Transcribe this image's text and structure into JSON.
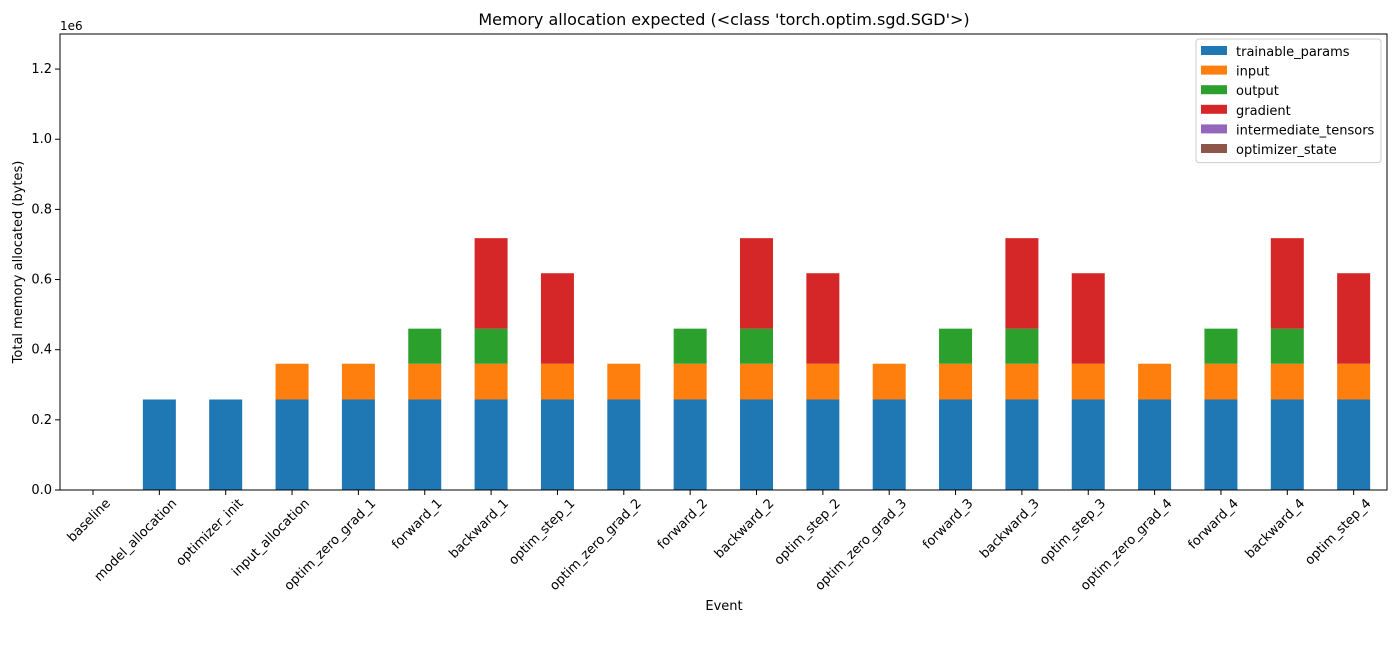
{
  "chart_data": {
    "type": "bar",
    "stacked": true,
    "title": "Memory allocation expected (<class 'torch.optim.sgd.SGD'>)",
    "xlabel": "Event",
    "ylabel": "Total memory allocated (bytes)",
    "y_offset_label": "1e6",
    "y_scale": 1000000,
    "ylim": [
      0,
      1300000
    ],
    "yticks": [
      0,
      200000,
      400000,
      600000,
      800000,
      1000000,
      1200000
    ],
    "ytick_labels": [
      "0.0",
      "0.2",
      "0.4",
      "0.6",
      "0.8",
      "1.0",
      "1.2"
    ],
    "grid": false,
    "legend_position": "top-right",
    "categories": [
      "baseline",
      "model_allocation",
      "optimizer_init",
      "input_allocation",
      "optim_zero_grad_1",
      "forward_1",
      "backward_1",
      "optim_step_1",
      "optim_zero_grad_2",
      "forward_2",
      "backward_2",
      "optim_step_2",
      "optim_zero_grad_3",
      "forward_3",
      "backward_3",
      "optim_step_3",
      "optim_zero_grad_4",
      "forward_4",
      "backward_4",
      "optim_step_4"
    ],
    "series": [
      {
        "name": "trainable_params",
        "color": "#1f77b4",
        "values": [
          0,
          258000,
          258000,
          258000,
          258000,
          258000,
          258000,
          258000,
          258000,
          258000,
          258000,
          258000,
          258000,
          258000,
          258000,
          258000,
          258000,
          258000,
          258000,
          258000
        ]
      },
      {
        "name": "input",
        "color": "#ff7f0e",
        "values": [
          0,
          0,
          0,
          102000,
          102000,
          102000,
          102000,
          102000,
          102000,
          102000,
          102000,
          102000,
          102000,
          102000,
          102000,
          102000,
          102000,
          102000,
          102000,
          102000
        ]
      },
      {
        "name": "output",
        "color": "#2ca02c",
        "values": [
          0,
          0,
          0,
          0,
          0,
          100000,
          100000,
          0,
          0,
          100000,
          100000,
          0,
          0,
          100000,
          100000,
          0,
          0,
          100000,
          100000,
          0
        ]
      },
      {
        "name": "gradient",
        "color": "#d62728",
        "values": [
          0,
          0,
          0,
          0,
          0,
          0,
          258000,
          258000,
          0,
          0,
          258000,
          258000,
          0,
          0,
          258000,
          258000,
          0,
          0,
          258000,
          258000
        ]
      },
      {
        "name": "intermediate_tensors",
        "color": "#9467bd",
        "values": [
          0,
          0,
          0,
          0,
          0,
          0,
          0,
          0,
          0,
          0,
          0,
          0,
          0,
          0,
          0,
          0,
          0,
          0,
          0,
          0
        ]
      },
      {
        "name": "optimizer_state",
        "color": "#8c564b",
        "values": [
          0,
          0,
          0,
          0,
          0,
          0,
          0,
          0,
          0,
          0,
          0,
          0,
          0,
          0,
          0,
          0,
          0,
          0,
          0,
          0
        ]
      }
    ]
  }
}
